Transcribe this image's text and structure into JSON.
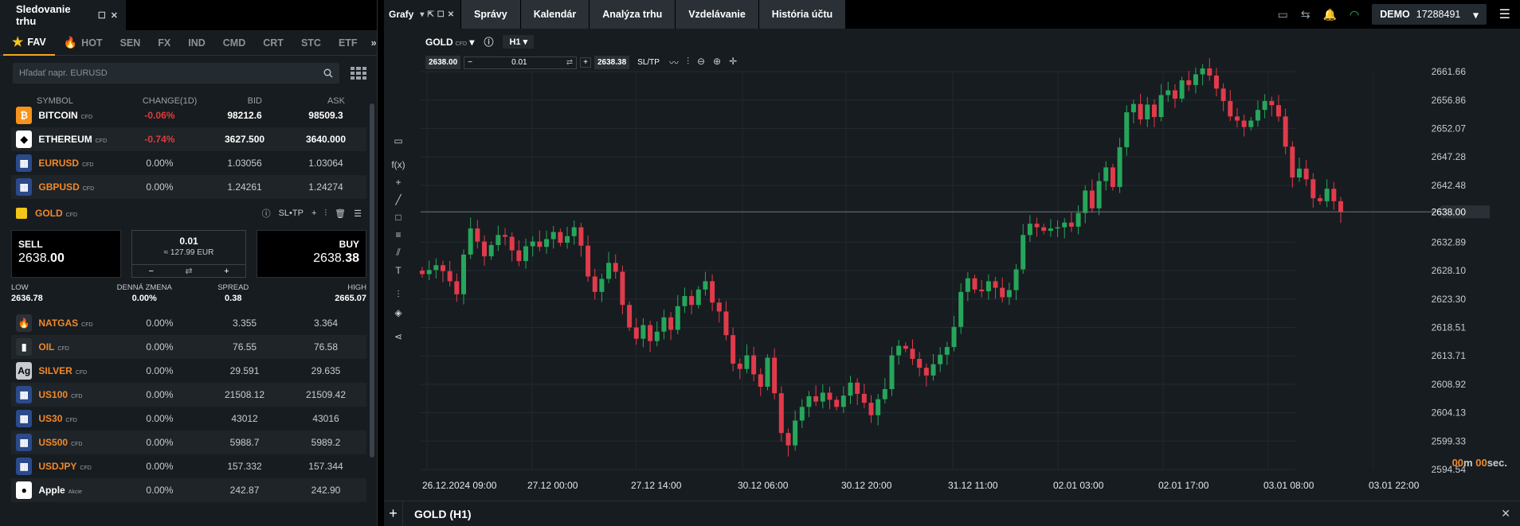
{
  "watchlist": {
    "title": "Sledovanie trhu",
    "tabs": [
      {
        "label": "FAV",
        "icon": "star-icon"
      },
      {
        "label": "HOT",
        "icon": "fire-icon"
      },
      {
        "label": "SEN"
      },
      {
        "label": "FX"
      },
      {
        "label": "IND"
      },
      {
        "label": "CMD"
      },
      {
        "label": "CRT"
      },
      {
        "label": "STC"
      },
      {
        "label": "ETF"
      }
    ],
    "search_placeholder": "Hľadať napr. EURUSD",
    "columns": {
      "symbol": "SYMBOL",
      "change": "CHANGE(1D)",
      "bid": "BID",
      "ask": "ASK"
    },
    "rows_top": [
      {
        "symbol": "BITCOIN",
        "tag": "CFD",
        "change": "-0.06%",
        "bid": "98212.6",
        "ask": "98509.3",
        "icon_color": "#f7931a",
        "glyph": "₿",
        "neg": true
      },
      {
        "symbol": "ETHEREUM",
        "tag": "CFD",
        "change": "-0.74%",
        "bid": "3627.500",
        "ask": "3640.000",
        "icon_color": "#ffffff",
        "glyph": "◆",
        "neg": true
      },
      {
        "symbol": "EURUSD",
        "tag": "CFD",
        "change": "0.00%",
        "bid": "1.03056",
        "ask": "1.03064",
        "icon_color": "#2b4a8a",
        "glyph": "▦",
        "neg": false
      },
      {
        "symbol": "GBPUSD",
        "tag": "CFD",
        "change": "0.00%",
        "bid": "1.24261",
        "ask": "1.24274",
        "icon_color": "#2b4a8a",
        "glyph": "▦",
        "neg": false
      }
    ],
    "gold": {
      "symbol": "GOLD",
      "tag": "CFD",
      "sltp": "SL•TP",
      "sell_label": "SELL",
      "sell_big": "2638.",
      "sell_small": "00",
      "buy_label": "BUY",
      "buy_big": "2638.",
      "buy_small": "38",
      "qty": "0.01",
      "qty_eur": "≈ 127.99 EUR",
      "low_label": "LOW",
      "low": "2636.78",
      "daily_label": "DENNÁ ZMENA",
      "daily": "0.00%",
      "spread_label": "SPREAD",
      "spread": "0.38",
      "high_label": "HIGH",
      "high": "2665.07"
    },
    "rows_bottom": [
      {
        "symbol": "NATGAS",
        "tag": "CFD",
        "change": "0.00%",
        "bid": "3.355",
        "ask": "3.364",
        "icon_color": "#2a3036",
        "glyph": "🔥"
      },
      {
        "symbol": "OIL",
        "tag": "CFD",
        "change": "0.00%",
        "bid": "76.55",
        "ask": "76.58",
        "icon_color": "#2a3036",
        "glyph": "▮"
      },
      {
        "symbol": "SILVER",
        "tag": "CFD",
        "change": "0.00%",
        "bid": "29.591",
        "ask": "29.635",
        "icon_color": "#c8ccd0",
        "glyph": "Ag"
      },
      {
        "symbol": "US100",
        "tag": "CFD",
        "change": "0.00%",
        "bid": "21508.12",
        "ask": "21509.42",
        "icon_color": "#2b4a8a",
        "glyph": "▦"
      },
      {
        "symbol": "US30",
        "tag": "CFD",
        "change": "0.00%",
        "bid": "43012",
        "ask": "43016",
        "icon_color": "#2b4a8a",
        "glyph": "▦"
      },
      {
        "symbol": "US500",
        "tag": "CFD",
        "change": "0.00%",
        "bid": "5988.7",
        "ask": "5989.2",
        "icon_color": "#2b4a8a",
        "glyph": "▦"
      },
      {
        "symbol": "USDJPY",
        "tag": "CFD",
        "change": "0.00%",
        "bid": "157.332",
        "ask": "157.344",
        "icon_color": "#2b4a8a",
        "glyph": "▦"
      },
      {
        "symbol": "Apple",
        "tag": "Akcie",
        "change": "0.00%",
        "bid": "242.87",
        "ask": "242.90",
        "icon_color": "#ffffff",
        "glyph": "●",
        "white": true
      }
    ]
  },
  "chartwin": {
    "tab_label": "Grafy",
    "nav": [
      "Správy",
      "Kalendár",
      "Analýza trhu",
      "Vzdelávanie",
      "História účtu"
    ],
    "account": "DEMO",
    "account_id": "17288491",
    "instrument": "GOLD",
    "instrument_tag": "CFD",
    "timeframe": "H1",
    "order_sell": "2638.00",
    "order_qty": "0.01",
    "order_buy": "2638.38",
    "sltp": "SL/TP",
    "bottom_title": "GOLD (H1)",
    "timer_min": "00",
    "timer_m": "m",
    "timer_sec": "00",
    "timer_s": "sec."
  },
  "chart_data": {
    "type": "candlestick",
    "y_ticks": [
      "2661.66",
      "2656.86",
      "2652.07",
      "2647.28",
      "2642.48",
      "2638.00",
      "2632.89",
      "2628.10",
      "2623.30",
      "2618.51",
      "2613.71",
      "2608.92",
      "2604.13",
      "2599.33",
      "2594.54"
    ],
    "x_ticks": [
      "26.12.2024 09:00",
      "27.12 00:00",
      "27.12 14:00",
      "30.12 06:00",
      "30.12 20:00",
      "31.12 11:00",
      "02.01 03:00",
      "02.01 17:00",
      "03.01 08:00",
      "03.01 22:00"
    ],
    "current_price": "2638.00",
    "ylim": [
      2594.54,
      2661.66
    ],
    "colors": {
      "up": "#26a65b",
      "down": "#e03b4b"
    },
    "closes": [
      2627.5,
      2628.2,
      2629.0,
      2628.0,
      2626.3,
      2624.1,
      2630.8,
      2635.2,
      2633.0,
      2630.5,
      2632.4,
      2634.1,
      2633.8,
      2631.5,
      2629.7,
      2632.2,
      2633.0,
      2632.1,
      2633.4,
      2634.6,
      2632.8,
      2633.9,
      2635.4,
      2632.3,
      2627.1,
      2624.5,
      2626.7,
      2629.4,
      2627.9,
      2622.3,
      2618.5,
      2616.6,
      2618.9,
      2616.2,
      2617.8,
      2620.2,
      2618.1,
      2622.1,
      2623.8,
      2622.3,
      2624.9,
      2626.3,
      2622.7,
      2621.2,
      2617.2,
      2612.4,
      2611.5,
      2613.8,
      2610.6,
      2608.5,
      2613.4,
      2607.4,
      2600.7,
      2598.6,
      2602.8,
      2605.1,
      2606.9,
      2606.0,
      2607.5,
      2606.3,
      2605.1,
      2607.0,
      2609.2,
      2607.3,
      2605.8,
      2603.7,
      2606.4,
      2608.1,
      2613.8,
      2615.4,
      2614.9,
      2613.2,
      2611.7,
      2610.4,
      2612.3,
      2613.9,
      2615.2,
      2618.6,
      2624.5,
      2626.8,
      2624.9,
      2624.6,
      2626.3,
      2625.2,
      2623.6,
      2624.8,
      2628.3,
      2634.1,
      2636.0,
      2635.4,
      2634.8,
      2635.2,
      2635.4,
      2636.2,
      2635.5,
      2637.8,
      2641.6,
      2638.6,
      2643.2,
      2645.5,
      2642.2,
      2648.9,
      2654.8,
      2656.2,
      2653.6,
      2656.1,
      2654.0,
      2657.7,
      2658.5,
      2657.1,
      2660.2,
      2659.4,
      2661.2,
      2662.2,
      2661.0,
      2658.8,
      2656.7,
      2654.1,
      2653.4,
      2652.3,
      2653.4,
      2655.2,
      2656.7,
      2656.0,
      2654.1,
      2649.0,
      2643.8,
      2645.3,
      2643.5,
      2640.3,
      2639.8,
      2641.9,
      2639.8,
      2638.0
    ]
  }
}
